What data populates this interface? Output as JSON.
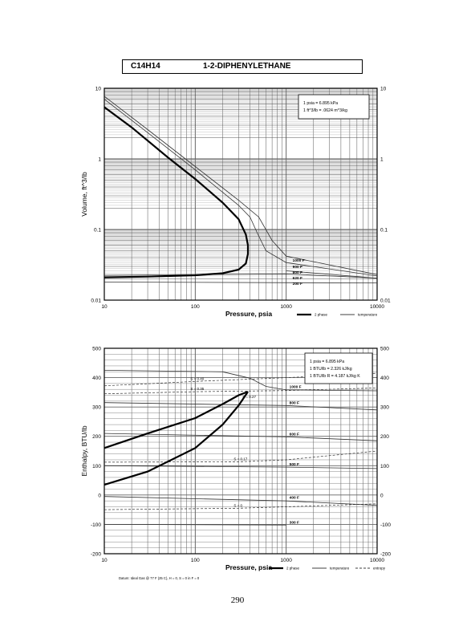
{
  "header": {
    "formula": "C14H14",
    "name": "1-2-DIPHENYLETHANE"
  },
  "page_number": "290",
  "chart_data": [
    {
      "type": "line",
      "xscale": "log",
      "yscale": "log",
      "xlabel": "Pressure,  psia",
      "ylabel": "Volume, ft^3/lb",
      "xlim": [
        10,
        10000
      ],
      "ylim": [
        0.01,
        10
      ],
      "x_ticks": [
        "10",
        "100",
        "1000",
        "10000"
      ],
      "y_ticks": [
        "0.01",
        "0.1",
        "1",
        "10"
      ],
      "conversion_box": [
        "1 psia = 6.895 kPa",
        "1 ft^3/lb = .0624 m^3/kg"
      ],
      "legend": [
        "2 phase",
        "temperature"
      ],
      "saturation_dome": {
        "vapor": [
          [
            10,
            5.4
          ],
          [
            20,
            2.8
          ],
          [
            50,
            1.05
          ],
          [
            100,
            0.52
          ],
          [
            200,
            0.24
          ],
          [
            300,
            0.14
          ],
          [
            360,
            0.085
          ],
          [
            380,
            0.06
          ]
        ],
        "liquid": [
          [
            10,
            0.021
          ],
          [
            30,
            0.0215
          ],
          [
            100,
            0.0225
          ],
          [
            200,
            0.024
          ],
          [
            300,
            0.027
          ],
          [
            360,
            0.033
          ],
          [
            380,
            0.045
          ],
          [
            380,
            0.06
          ]
        ]
      },
      "isotherms": [
        {
          "label": "1000 F",
          "points": [
            [
              10,
              7.7
            ],
            [
              30,
              2.6
            ],
            [
              100,
              0.78
            ],
            [
              300,
              0.26
            ],
            [
              500,
              0.15
            ],
            [
              700,
              0.07
            ],
            [
              1000,
              0.042
            ],
            [
              10000,
              0.023
            ]
          ]
        },
        {
          "label": "900 F",
          "points": [
            [
              10,
              7.0
            ],
            [
              30,
              2.35
            ],
            [
              100,
              0.7
            ],
            [
              300,
              0.22
            ],
            [
              400,
              0.15
            ],
            [
              480,
              0.09
            ],
            [
              600,
              0.05
            ],
            [
              1000,
              0.034
            ],
            [
              10000,
              0.022
            ]
          ]
        },
        {
          "label": "800 F",
          "points": [
            [
              1000,
              0.026
            ],
            [
              10000,
              0.0205
            ]
          ]
        },
        {
          "label": "620 F",
          "points": [
            [
              10,
              0.0225
            ],
            [
              1000,
              0.0235
            ],
            [
              10000,
              0.0205
            ]
          ]
        },
        {
          "label": "200 F",
          "points": [
            [
              10,
              0.018
            ],
            [
              10000,
              0.0175
            ]
          ]
        }
      ]
    },
    {
      "type": "line",
      "xscale": "log",
      "yscale": "linear",
      "xlabel": "Pressure,  psia",
      "ylabel": "Enthalpy, BTU/lb",
      "xlim": [
        10,
        10000
      ],
      "ylim": [
        -200,
        500
      ],
      "x_ticks": [
        "10",
        "100",
        "1000",
        "10000"
      ],
      "y_ticks": [
        "-200",
        "-100",
        "0",
        "100",
        "200",
        "300",
        "400",
        "500"
      ],
      "conversion_box": [
        "1 psia = 6.895 kPa",
        "1 BTU/lb = 2.326 kJ/kg",
        "1 BTU/lb R = 4.187 kJ/kg K"
      ],
      "datum_note": "Datum: Ideal Gas @ 77 F (25 C),  H = 0,  S = 0 in F = 0",
      "legend": [
        "2 phase",
        "temperature",
        "entropy"
      ],
      "saturation_dome": {
        "vapor": [
          [
            10,
            160
          ],
          [
            30,
            210
          ],
          [
            100,
            262
          ],
          [
            200,
            310
          ],
          [
            300,
            340
          ],
          [
            380,
            352
          ]
        ],
        "liquid": [
          [
            10,
            35
          ],
          [
            30,
            80
          ],
          [
            100,
            160
          ],
          [
            200,
            240
          ],
          [
            300,
            305
          ],
          [
            380,
            352
          ]
        ]
      },
      "isotherms": [
        {
          "label": "1000 F",
          "points": [
            [
              10,
              425
            ],
            [
              200,
              420
            ],
            [
              400,
              398
            ],
            [
              600,
              370
            ],
            [
              1000,
              358
            ],
            [
              10000,
              355
            ]
          ]
        },
        {
          "label": "800 F",
          "points": [
            [
              10,
              315
            ],
            [
              1000,
              305
            ],
            [
              10000,
              290
            ]
          ]
        },
        {
          "label": "600 F",
          "points": [
            [
              10,
              210
            ],
            [
              1000,
              198
            ],
            [
              10000,
              185
            ]
          ]
        },
        {
          "label": "500 F",
          "points": [
            [
              10,
              100
            ],
            [
              1000,
              95
            ],
            [
              10000,
              90
            ]
          ]
        },
        {
          "label": "400 F",
          "points": [
            [
              10,
              -5
            ],
            [
              1000,
              -20
            ],
            [
              10000,
              -35
            ]
          ]
        },
        {
          "label": "300 F",
          "points": [
            [
              10,
              -100
            ],
            [
              1000,
              -102
            ]
          ]
        }
      ],
      "entropy_lines": [
        {
          "label": "S = 0.40",
          "points": [
            [
              10,
              372
            ],
            [
              100,
              387
            ],
            [
              1000,
              400
            ],
            [
              10000,
              415
            ]
          ]
        },
        {
          "label": "S = 0.35",
          "points": [
            [
              10,
              345
            ],
            [
              100,
              352
            ],
            [
              1000,
              356
            ],
            [
              10000,
              365
            ]
          ]
        },
        {
          "label": "S = 0.17",
          "points": [
            [
              10,
              112
            ],
            [
              300,
              113
            ],
            [
              1000,
              120
            ],
            [
              10000,
              150
            ]
          ]
        },
        {
          "label": "S = 0",
          "points": [
            [
              10,
              -50
            ],
            [
              300,
              -45
            ],
            [
              1000,
              -40
            ],
            [
              10000,
              -30
            ]
          ]
        }
      ],
      "annotations": [
        "S = 0.40",
        "S = 0.35",
        "S = 0.27",
        "S = 0.17",
        "S = 0",
        "1000 F",
        "800 F",
        "600 F",
        "500 F",
        "400 F",
        "300 F"
      ]
    }
  ]
}
